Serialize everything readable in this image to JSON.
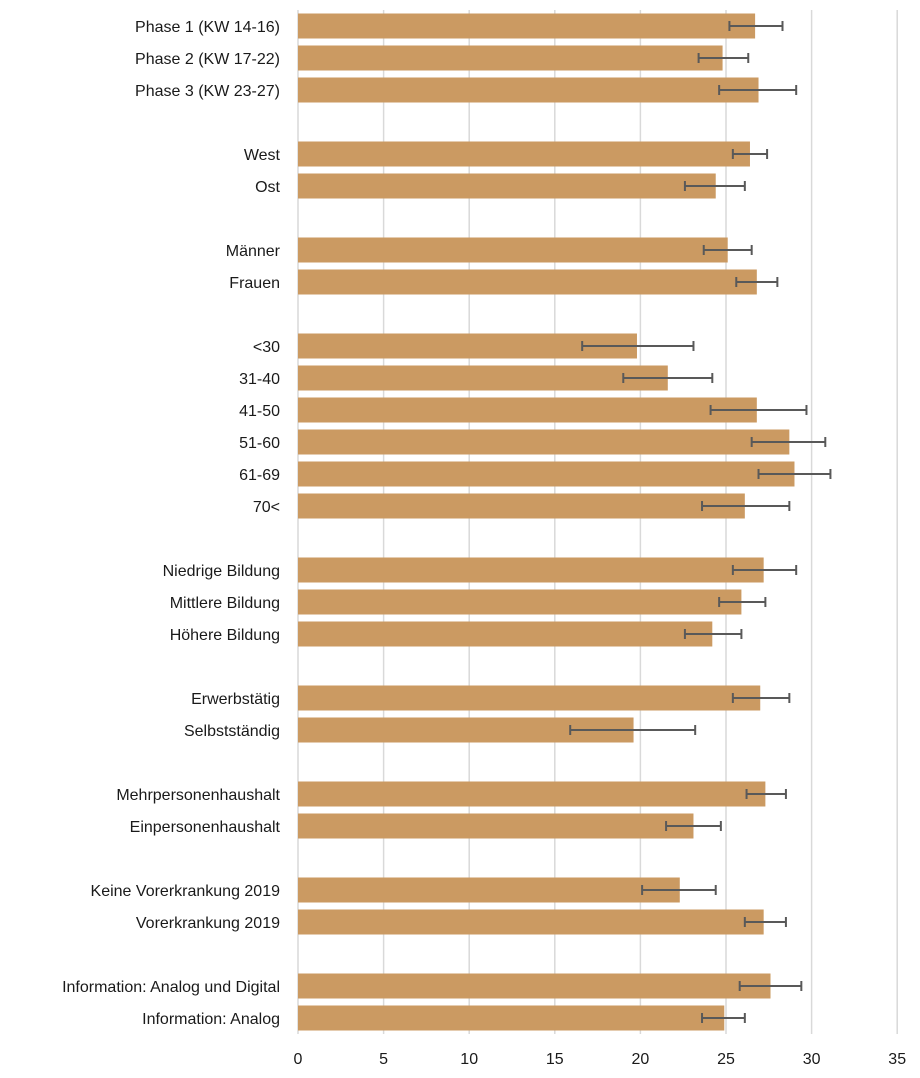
{
  "chart_data": {
    "type": "bar",
    "orientation": "horizontal",
    "error_bars": true,
    "xlim": [
      0,
      35
    ],
    "x_ticks": [
      "0",
      "5",
      "10",
      "15",
      "20",
      "25",
      "30",
      "35"
    ],
    "grid": "vertical",
    "colors": {
      "bar": "#CB9A62",
      "error_bar": "#595959",
      "grid": "#D9D9D9"
    },
    "groups": [
      {
        "categories": [
          "Phase 1 (KW 14-16)",
          "Phase 2 (KW 17-22)",
          "Phase 3 (KW 23-27)"
        ],
        "values": [
          26.7,
          24.8,
          26.9
        ],
        "ci_low": [
          25.2,
          23.4,
          24.6
        ],
        "ci_high": [
          28.3,
          26.3,
          29.1
        ]
      },
      {
        "categories": [
          "West",
          "Ost"
        ],
        "values": [
          26.4,
          24.4
        ],
        "ci_low": [
          25.4,
          22.6
        ],
        "ci_high": [
          27.4,
          26.1
        ]
      },
      {
        "categories": [
          "Männer",
          "Frauen"
        ],
        "values": [
          25.1,
          26.8
        ],
        "ci_low": [
          23.7,
          25.6
        ],
        "ci_high": [
          26.5,
          28.0
        ]
      },
      {
        "categories": [
          "<30",
          "31-40",
          "41-50",
          "51-60",
          "61-69",
          "70<"
        ],
        "values": [
          19.8,
          21.6,
          26.8,
          28.7,
          29.0,
          26.1
        ],
        "ci_low": [
          16.6,
          19.0,
          24.1,
          26.5,
          26.9,
          23.6
        ],
        "ci_high": [
          23.1,
          24.2,
          29.7,
          30.8,
          31.1,
          28.7
        ]
      },
      {
        "categories": [
          "Niedrige Bildung",
          "Mittlere Bildung",
          "Höhere Bildung"
        ],
        "values": [
          27.2,
          25.9,
          24.2
        ],
        "ci_low": [
          25.4,
          24.6,
          22.6
        ],
        "ci_high": [
          29.1,
          27.3,
          25.9
        ]
      },
      {
        "categories": [
          "Erwerbstätig",
          "Selbstständig"
        ],
        "values": [
          27.0,
          19.6
        ],
        "ci_low": [
          25.4,
          15.9
        ],
        "ci_high": [
          28.7,
          23.2
        ]
      },
      {
        "categories": [
          "Mehrpersonenhaushalt",
          "Einpersonenhaushalt"
        ],
        "values": [
          27.3,
          23.1
        ],
        "ci_low": [
          26.2,
          21.5
        ],
        "ci_high": [
          28.5,
          24.7
        ]
      },
      {
        "categories": [
          "Keine Vorerkrankung 2019",
          "Vorerkrankung 2019 "
        ],
        "values": [
          22.3,
          27.2
        ],
        "ci_low": [
          20.1,
          26.1
        ],
        "ci_high": [
          24.4,
          28.5
        ]
      },
      {
        "categories": [
          "Information: Analog und Digital",
          "Information: Analog"
        ],
        "values": [
          27.6,
          24.9
        ],
        "ci_low": [
          25.8,
          23.6
        ],
        "ci_high": [
          29.4,
          26.1
        ]
      }
    ]
  }
}
